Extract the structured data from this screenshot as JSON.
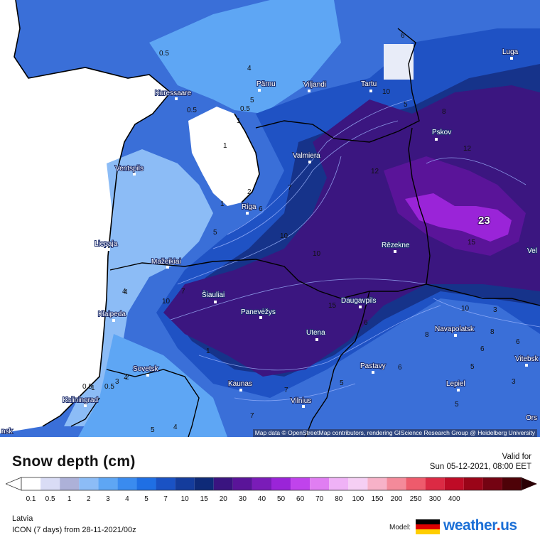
{
  "map": {
    "max_value_label": "23",
    "attribution": "Map data © OpenStreetMap contributors, rendering GIScience Research Group @ Heidelberg University",
    "cities": [
      {
        "name": "Kuressaare"
      },
      {
        "name": "Pärnu"
      },
      {
        "name": "Viljandi"
      },
      {
        "name": "Tartu"
      },
      {
        "name": "Luga"
      },
      {
        "name": "Pskov"
      },
      {
        "name": "Valmiera"
      },
      {
        "name": "Ventspils"
      },
      {
        "name": "Riga"
      },
      {
        "name": "Liepaja"
      },
      {
        "name": "Rēzekne"
      },
      {
        "name": "Mažeikiai"
      },
      {
        "name": "Šiauliai"
      },
      {
        "name": "Daugavpils"
      },
      {
        "name": "Klaipeda"
      },
      {
        "name": "Panevėžys"
      },
      {
        "name": "Utena"
      },
      {
        "name": "Navapolatsk"
      },
      {
        "name": "Vitebsk"
      },
      {
        "name": "Sovetsk"
      },
      {
        "name": "Pastavy"
      },
      {
        "name": "Kaunas"
      },
      {
        "name": "Lepiel"
      },
      {
        "name": "Kaliningrad"
      },
      {
        "name": "Vilnius"
      },
      {
        "name": "Vel"
      },
      {
        "name": "Ors"
      },
      {
        "name": "nsk"
      }
    ],
    "contour_labels": [
      "0.5",
      "0.5",
      "0.5",
      "4",
      "1",
      "5",
      "6",
      "10",
      "2",
      "1",
      "7",
      "6",
      "12",
      "15",
      "12",
      "10",
      "4",
      "10",
      "15",
      "10",
      "2",
      "3",
      "5",
      "7",
      "8",
      "5",
      "6",
      "6",
      "3",
      "6",
      "1",
      "1",
      "4",
      "0.5",
      "2",
      "4",
      "1",
      "0.5",
      "5",
      "7",
      "5",
      "6",
      "5",
      "7",
      "8",
      "5",
      "10",
      "3",
      "8"
    ]
  },
  "legend": {
    "title": "Snow depth (cm)",
    "valid_for_label": "Valid for",
    "valid_time": "Sun 05-12-2021, 08:00 EET",
    "steps": [
      {
        "label": "0.1",
        "color": "#ffffff"
      },
      {
        "label": "0.5",
        "color": "#d9dcf5"
      },
      {
        "label": "1",
        "color": "#adb1d8"
      },
      {
        "label": "2",
        "color": "#8cbcf6"
      },
      {
        "label": "3",
        "color": "#5ea6f4"
      },
      {
        "label": "4",
        "color": "#3a8bef"
      },
      {
        "label": "5",
        "color": "#1f6fe4"
      },
      {
        "label": "7",
        "color": "#1a52c4"
      },
      {
        "label": "10",
        "color": "#143c9c"
      },
      {
        "label": "15",
        "color": "#0e2a78"
      },
      {
        "label": "20",
        "color": "#3a1480"
      },
      {
        "label": "30",
        "color": "#5a1499"
      },
      {
        "label": "40",
        "color": "#7a1cb8"
      },
      {
        "label": "50",
        "color": "#9a24d8"
      },
      {
        "label": "60",
        "color": "#c043ec"
      },
      {
        "label": "70",
        "color": "#e07ef2"
      },
      {
        "label": "80",
        "color": "#efb2f6"
      },
      {
        "label": "100",
        "color": "#f5cff4"
      },
      {
        "label": "150",
        "color": "#f7b2c8"
      },
      {
        "label": "200",
        "color": "#f48a9a"
      },
      {
        "label": "250",
        "color": "#ee5b6c"
      },
      {
        "label": "300",
        "color": "#dc2a44"
      },
      {
        "label": "400",
        "color": "#bf0b26"
      },
      {
        "label": "",
        "color": "#9a0418"
      },
      {
        "label": "",
        "color": "#740312"
      },
      {
        "label": "",
        "color": "#4e0208"
      }
    ]
  },
  "footer": {
    "region": "Latvia",
    "model_run": "ICON (7 days)  from  28-11-2021/00z",
    "model_label": "Model:",
    "brand_name": "weather",
    "brand_dot": ".",
    "brand_tld": "us"
  }
}
